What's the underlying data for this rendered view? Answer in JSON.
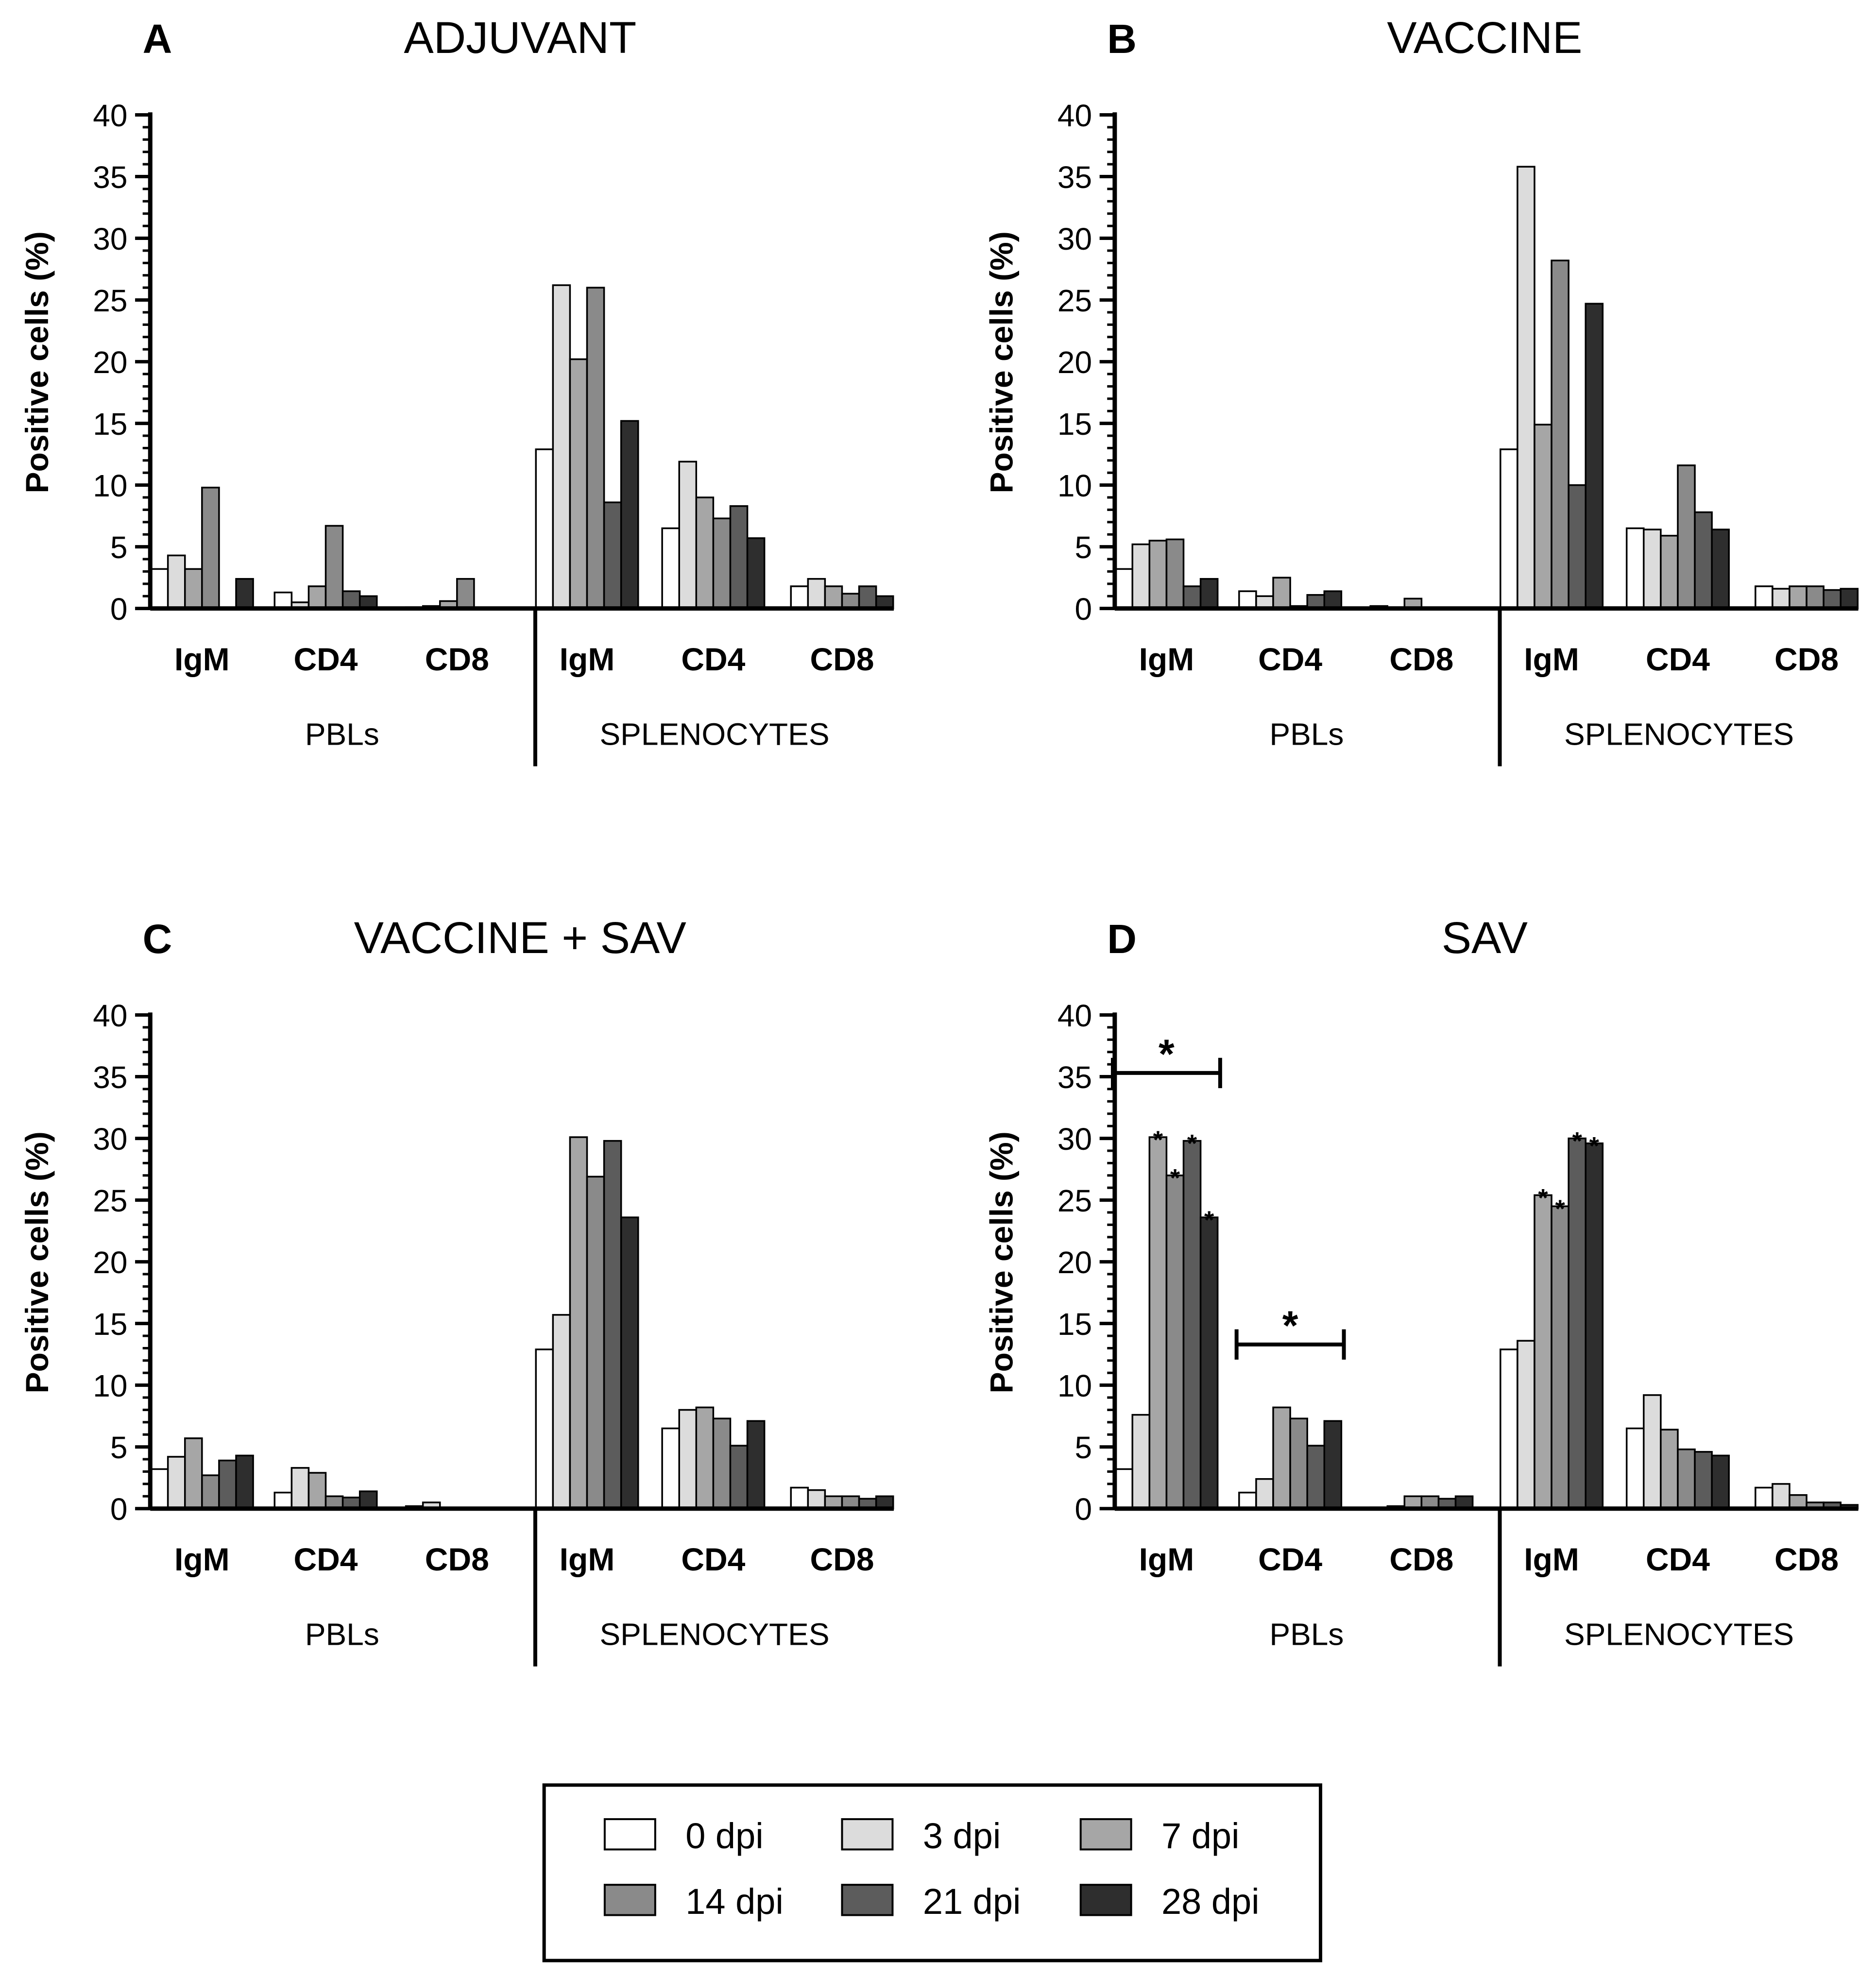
{
  "legend": [
    {
      "label": "0 dpi",
      "color": "#ffffff"
    },
    {
      "label": "3 dpi",
      "color": "#dcdcdc"
    },
    {
      "label": "7 dpi",
      "color": "#a6a6a6"
    },
    {
      "label": "14 dpi",
      "color": "#8a8a8a"
    },
    {
      "label": "21 dpi",
      "color": "#5c5c5c"
    },
    {
      "label": "28 dpi",
      "color": "#2e2e2e"
    }
  ],
  "chart_data": [
    {
      "type": "bar",
      "panel": "A",
      "title": "ADJUVANT",
      "ylabel": "Positive cells (%)",
      "ylim": [
        0,
        40
      ],
      "yticks": [
        "0",
        "5",
        "10",
        "15",
        "20",
        "25",
        "30",
        "35",
        "40"
      ],
      "groups": [
        "PBLs",
        "SPLENOCYTES"
      ],
      "categories": [
        "IgM",
        "CD4",
        "CD8",
        "IgM",
        "CD4",
        "CD8"
      ],
      "series": [
        {
          "name": "0 dpi",
          "values": [
            3.2,
            1.3,
            0.1,
            12.9,
            6.5,
            1.8
          ]
        },
        {
          "name": "3 dpi",
          "values": [
            4.3,
            0.5,
            0.2,
            26.2,
            11.9,
            2.4
          ]
        },
        {
          "name": "7 dpi",
          "values": [
            3.2,
            1.8,
            0.6,
            20.2,
            9.0,
            1.8
          ]
        },
        {
          "name": "14 dpi",
          "values": [
            9.8,
            6.7,
            2.4,
            26.0,
            7.3,
            1.2
          ]
        },
        {
          "name": "21 dpi",
          "values": [
            0,
            1.4,
            0,
            8.6,
            8.3,
            1.8
          ]
        },
        {
          "name": "28 dpi",
          "values": [
            2.4,
            1.0,
            0,
            15.2,
            5.7,
            1.0
          ]
        }
      ],
      "annotations": []
    },
    {
      "type": "bar",
      "panel": "B",
      "title": "VACCINE",
      "ylabel": "Positive cells (%)",
      "ylim": [
        0,
        40
      ],
      "yticks": [
        "0",
        "5",
        "10",
        "15",
        "20",
        "25",
        "30",
        "35",
        "40"
      ],
      "groups": [
        "PBLs",
        "SPLENOCYTES"
      ],
      "categories": [
        "IgM",
        "CD4",
        "CD8",
        "IgM",
        "CD4",
        "CD8"
      ],
      "series": [
        {
          "name": "0 dpi",
          "values": [
            3.2,
            1.4,
            0.2,
            12.9,
            6.5,
            1.8
          ]
        },
        {
          "name": "3 dpi",
          "values": [
            5.2,
            1.0,
            0.1,
            35.8,
            6.4,
            1.6
          ]
        },
        {
          "name": "7 dpi",
          "values": [
            5.5,
            2.5,
            0.8,
            14.9,
            5.9,
            1.8
          ]
        },
        {
          "name": "14 dpi",
          "values": [
            5.6,
            0.2,
            0,
            28.2,
            11.6,
            1.8
          ]
        },
        {
          "name": "21 dpi",
          "values": [
            1.8,
            1.1,
            0,
            10.0,
            7.8,
            1.5
          ]
        },
        {
          "name": "28 dpi",
          "values": [
            2.4,
            1.4,
            0,
            24.7,
            6.4,
            1.6
          ]
        }
      ],
      "annotations": []
    },
    {
      "type": "bar",
      "panel": "C",
      "title": "VACCINE + SAV",
      "ylabel": "Positive cells (%)",
      "ylim": [
        0,
        40
      ],
      "yticks": [
        "0",
        "5",
        "10",
        "15",
        "20",
        "25",
        "30",
        "35",
        "40"
      ],
      "groups": [
        "PBLs",
        "SPLENOCYTES"
      ],
      "categories": [
        "IgM",
        "CD4",
        "CD8",
        "IgM",
        "CD4",
        "CD8"
      ],
      "series": [
        {
          "name": "0 dpi",
          "values": [
            3.2,
            1.3,
            0.2,
            12.9,
            6.5,
            1.7
          ]
        },
        {
          "name": "3 dpi",
          "values": [
            4.2,
            3.3,
            0.5,
            15.7,
            8.0,
            1.5
          ]
        },
        {
          "name": "7 dpi",
          "values": [
            5.7,
            2.9,
            0,
            30.1,
            8.2,
            1.0
          ]
        },
        {
          "name": "14 dpi",
          "values": [
            2.7,
            1.0,
            0,
            26.9,
            7.3,
            1.0
          ]
        },
        {
          "name": "21 dpi",
          "values": [
            3.9,
            0.9,
            0,
            29.8,
            5.1,
            0.8
          ]
        },
        {
          "name": "28 dpi",
          "values": [
            4.3,
            1.4,
            0,
            23.6,
            7.1,
            1.0
          ]
        }
      ],
      "annotations": []
    },
    {
      "type": "bar",
      "panel": "D",
      "title": "SAV",
      "ylabel": "Positive cells (%)",
      "ylim": [
        0,
        40
      ],
      "yticks": [
        "0",
        "5",
        "10",
        "15",
        "20",
        "25",
        "30",
        "35",
        "40"
      ],
      "groups": [
        "PBLs",
        "SPLENOCYTES"
      ],
      "categories": [
        "IgM",
        "CD4",
        "CD8",
        "IgM",
        "CD4",
        "CD8"
      ],
      "series": [
        {
          "name": "0 dpi",
          "values": [
            3.2,
            1.3,
            0.1,
            12.9,
            6.5,
            1.7
          ]
        },
        {
          "name": "3 dpi",
          "values": [
            7.6,
            2.4,
            0.2,
            13.6,
            9.2,
            2.0
          ]
        },
        {
          "name": "7 dpi",
          "values": [
            30.1,
            8.2,
            1.0,
            25.4,
            6.4,
            1.1
          ]
        },
        {
          "name": "14 dpi",
          "values": [
            27.0,
            7.3,
            1.0,
            24.5,
            4.8,
            0.5
          ]
        },
        {
          "name": "21 dpi",
          "values": [
            29.8,
            5.1,
            0.8,
            30.0,
            4.6,
            0.5
          ]
        },
        {
          "name": "28 dpi",
          "values": [
            23.6,
            7.1,
            1.0,
            29.6,
            4.3,
            0.3
          ]
        }
      ],
      "annotations": [
        {
          "text": "*",
          "kind": "bar",
          "category_index": 0,
          "series_index": 2
        },
        {
          "text": "*",
          "kind": "bar",
          "category_index": 0,
          "series_index": 3
        },
        {
          "text": "*",
          "kind": "bar",
          "category_index": 0,
          "series_index": 4
        },
        {
          "text": "*",
          "kind": "bar",
          "category_index": 0,
          "series_index": 5
        },
        {
          "text": "*",
          "kind": "bar",
          "category_index": 3,
          "series_index": 2
        },
        {
          "text": "*",
          "kind": "bar",
          "category_index": 3,
          "series_index": 3
        },
        {
          "text": "*",
          "kind": "bar",
          "category_index": 3,
          "series_index": 4
        },
        {
          "text": "*",
          "kind": "bar",
          "category_index": 3,
          "series_index": 5
        },
        {
          "text": "*",
          "kind": "bracket",
          "category_index": 0,
          "y": 35.3
        },
        {
          "text": "*",
          "kind": "bracket",
          "category_index": 1,
          "y": 13.3
        }
      ]
    }
  ]
}
